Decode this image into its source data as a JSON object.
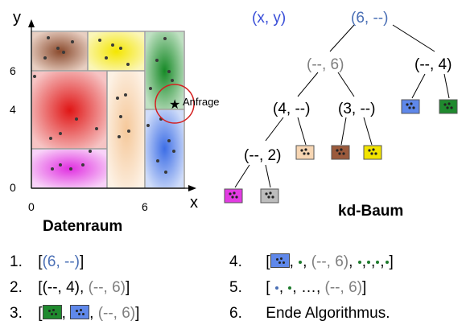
{
  "space": {
    "y_axis_label": "y",
    "x_axis_label": "x",
    "y_ticks": [
      "6",
      "4",
      "0"
    ],
    "x_ticks": [
      "0",
      "6"
    ],
    "query_label": "Anfrage",
    "caption": "Datenraum",
    "region_colors": {
      "brown": "#9b5a3c",
      "yellow": "#f2e400",
      "green": "#1f8a2e",
      "red": "#e21d1d",
      "peach": "#f7d6b3",
      "magenta": "#e33be3",
      "blue": "#4d7be8",
      "grey": "#bdbdbd"
    }
  },
  "tree": {
    "header": "(x, y)",
    "root": "(6, --)",
    "n1": "(--, 6)",
    "n2": "(--, 4)",
    "n3": "(4, --)",
    "n4": "(3, --)",
    "n5": "(--, 2)",
    "caption": "kd-Baum",
    "colors": {
      "root": "#4a6fb5",
      "grey": "#7f7f7f",
      "black": "#000000"
    }
  },
  "steps": {
    "s1": {
      "num": "1.",
      "open": "[",
      "a": "(6, --)",
      "close": "]"
    },
    "s2": {
      "num": "2.",
      "open": "[",
      "a": "(--, 4)",
      "sep": ",",
      "b": "(--, 6)",
      "close": "]"
    },
    "s3": {
      "num": "3.",
      "open": "[",
      "sep1": ",",
      "sep2": ",",
      "a": "(--, 6)",
      "close": "]"
    },
    "s4": {
      "num": "4.",
      "open": "[",
      "sep": ",",
      "a": "(--, 6)",
      "close": "]"
    },
    "s5": {
      "num": "5.",
      "open": "[",
      "mid": ", …,",
      "a": "(--, 6)",
      "close": "]"
    },
    "s6": {
      "num": "6.",
      "text": "Ende Algorithmus."
    }
  }
}
